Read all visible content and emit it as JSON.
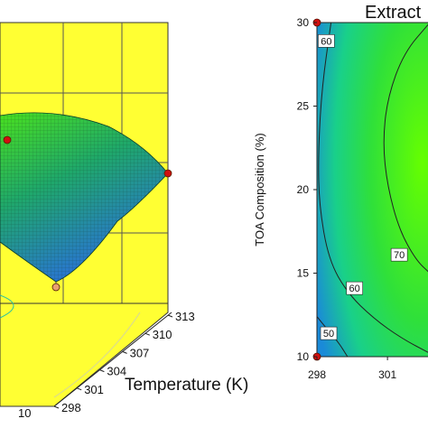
{
  "colors": {
    "wall": "#ffff33",
    "grid": "#555555",
    "surface_low": "#2a6fdc",
    "surface_mid": "#1fa86a",
    "surface_high": "#49e01e",
    "contour_line": "#222222",
    "point": "#d01010",
    "point_low": "#e8a070"
  },
  "chart_data": [
    {
      "type": "surface",
      "title": "",
      "x_axis": {
        "label": "Temperature (K)",
        "ticks": [
          "298",
          "301",
          "304",
          "307",
          "310",
          "313"
        ]
      },
      "y_axis": {
        "label": "",
        "ticks": [
          "10"
        ]
      },
      "design_points": 3
    },
    {
      "type": "contour",
      "title": "Extract",
      "xlabel": "",
      "ylabel": "TOA Composition (%)",
      "x_ticks": [
        "298",
        "301"
      ],
      "y_ticks": [
        "10",
        "15",
        "20",
        "25",
        "30"
      ],
      "xlim": [
        298,
        302.8
      ],
      "ylim": [
        10,
        30
      ],
      "contour_labels": [
        {
          "text": "60",
          "x": 298.4,
          "y": 28.9
        },
        {
          "text": "60",
          "x": 299.6,
          "y": 14.1
        },
        {
          "text": "70",
          "x": 301.5,
          "y": 16.1
        },
        {
          "text": "50",
          "x": 298.5,
          "y": 11.4
        }
      ],
      "contour_lines": [
        {
          "level": 50,
          "points": [
            [
              298,
              12.4
            ],
            [
              298.4,
              11.7
            ],
            [
              298.9,
              10.9
            ],
            [
              299.3,
              10
            ]
          ]
        },
        {
          "level": 60,
          "points": [
            [
              298.6,
              30
            ],
            [
              298.2,
              26
            ],
            [
              298.05,
              22
            ],
            [
              298.1,
              19
            ],
            [
              298.5,
              15.8
            ],
            [
              299.3,
              13.8
            ],
            [
              300.4,
              12.3
            ],
            [
              301.6,
              11.1
            ],
            [
              302.8,
              10.2
            ]
          ]
        },
        {
          "level": 70,
          "points": [
            [
              302.8,
              30
            ],
            [
              301.7,
              28.2
            ],
            [
              301.0,
              25.5
            ],
            [
              300.8,
              22.8
            ],
            [
              301.0,
              20.2
            ],
            [
              301.5,
              17.6
            ],
            [
              302.2,
              15.8
            ],
            [
              302.8,
              15.0
            ]
          ]
        }
      ],
      "design_points": [
        {
          "x": 298,
          "y": 30
        },
        {
          "x": 298,
          "y": 10
        }
      ]
    }
  ]
}
